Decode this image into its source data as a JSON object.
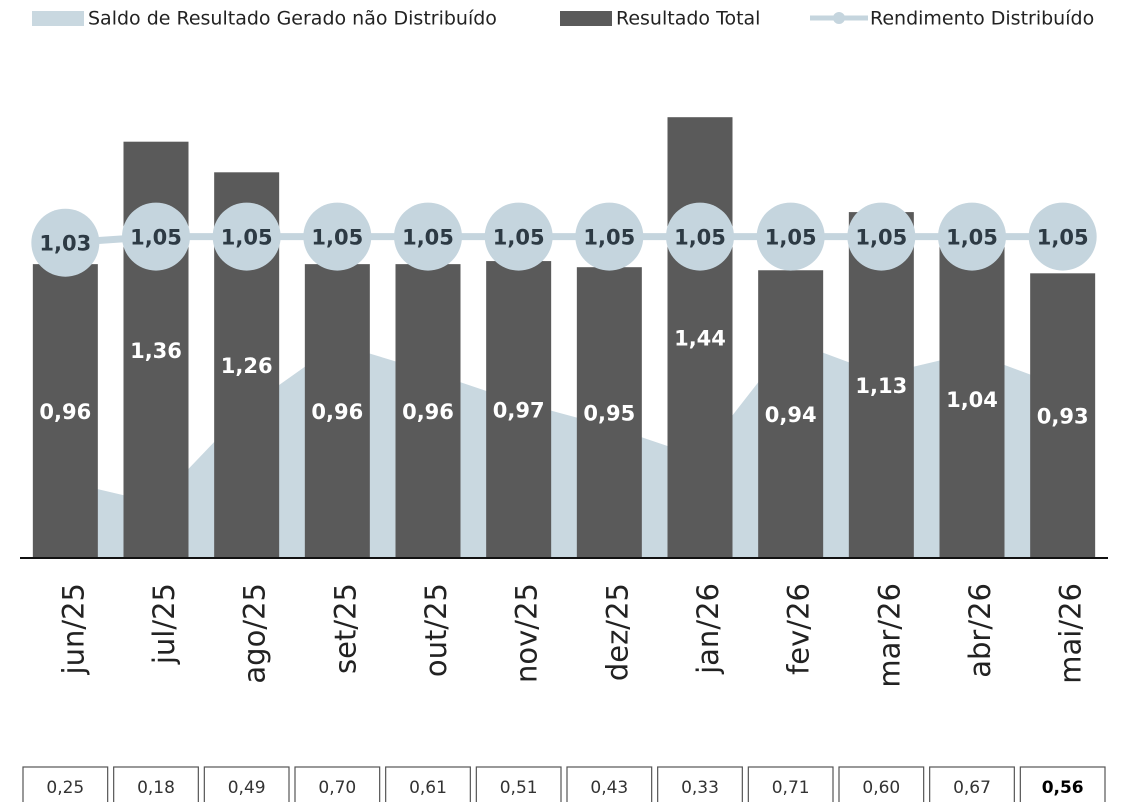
{
  "chart_data": {
    "type": "combo",
    "categories": [
      "jun/25",
      "jul/25",
      "ago/25",
      "set/25",
      "out/25",
      "nov/25",
      "dez/25",
      "jan/26",
      "fev/26",
      "mar/26",
      "abr/26",
      "mai/26"
    ],
    "ylim": [
      0,
      1.8
    ],
    "series": [
      {
        "name": "Saldo de Resultado Gerado não Distribuído",
        "type": "area",
        "color": "#c9d8e0",
        "values": [
          0.25,
          0.18,
          0.49,
          0.7,
          0.61,
          0.51,
          0.43,
          0.33,
          0.71,
          0.6,
          0.67,
          0.56
        ],
        "value_labels": [
          "0,25",
          "0,18",
          "0,49",
          "0,70",
          "0,61",
          "0,51",
          "0,43",
          "0,33",
          "0,71",
          "0,60",
          "0,67",
          "0,56"
        ]
      },
      {
        "name": "Resultado Total",
        "type": "bar",
        "color": "#5a5a5a",
        "values": [
          0.96,
          1.36,
          1.26,
          0.96,
          0.96,
          0.97,
          0.95,
          1.44,
          0.94,
          1.13,
          1.04,
          0.93
        ],
        "value_labels": [
          "0,96",
          "1,36",
          "1,26",
          "0,96",
          "0,96",
          "0,97",
          "0,95",
          "1,44",
          "0,94",
          "1,13",
          "1,04",
          "0,93"
        ]
      },
      {
        "name": "Rendimento Distribuído",
        "type": "line",
        "color": "#c5d5de",
        "values": [
          1.03,
          1.05,
          1.05,
          1.05,
          1.05,
          1.05,
          1.05,
          1.05,
          1.05,
          1.05,
          1.05,
          1.05
        ],
        "value_labels": [
          "1,03",
          "1,05",
          "1,05",
          "1,05",
          "1,05",
          "1,05",
          "1,05",
          "1,05",
          "1,05",
          "1,05",
          "1,05",
          "1,05"
        ]
      }
    ]
  }
}
